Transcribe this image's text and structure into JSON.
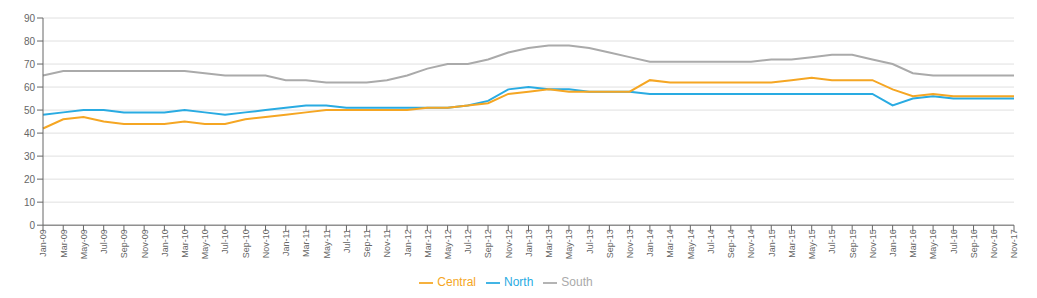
{
  "chart_data": {
    "type": "line",
    "categories": [
      "Jan-09",
      "Mar-09",
      "May-09",
      "Jul-09",
      "Sep-09",
      "Nov-09",
      "Jan-10",
      "Mar-10",
      "May-10",
      "Jul-10",
      "Sep-10",
      "Nov-10",
      "Jan-11",
      "Mar-11",
      "May-11",
      "Jul-11",
      "Sep-11",
      "Nov-11",
      "Jan-12",
      "Mar-12",
      "May-12",
      "Jul-12",
      "Sep-12",
      "Nov-12",
      "Jan-13",
      "Mar-13",
      "May-13",
      "Jul-13",
      "Sep-13",
      "Nov-13",
      "Jan-14",
      "Mar-14",
      "May-14",
      "Jul-14",
      "Sep-14",
      "Nov-14",
      "Jan-15",
      "Mar-15",
      "May-15",
      "Jul-15",
      "Sep-15",
      "Nov-15",
      "Jan-16",
      "Mar-16",
      "May-16",
      "Jul-16",
      "Sep-16",
      "Nov-16",
      "Nov-17"
    ],
    "series": [
      {
        "name": "North",
        "color": "#29ABE2",
        "values": [
          48,
          49,
          50,
          50,
          49,
          49,
          49,
          50,
          49,
          48,
          49,
          50,
          51,
          52,
          52,
          51,
          51,
          51,
          51,
          51,
          51,
          52,
          54,
          59,
          60,
          59,
          59,
          58,
          58,
          58,
          57,
          57,
          57,
          57,
          57,
          57,
          57,
          57,
          57,
          57,
          57,
          57,
          52,
          55,
          56,
          55,
          55,
          55,
          55
        ]
      },
      {
        "name": "Central",
        "color": "#F5A623",
        "values": [
          42,
          46,
          47,
          45,
          44,
          44,
          44,
          45,
          44,
          44,
          46,
          47,
          48,
          49,
          50,
          50,
          50,
          50,
          50,
          51,
          51,
          52,
          53,
          57,
          58,
          59,
          58,
          58,
          58,
          58,
          63,
          62,
          62,
          62,
          62,
          62,
          62,
          63,
          64,
          63,
          63,
          63,
          59,
          56,
          57,
          56,
          56,
          56,
          56
        ]
      },
      {
        "name": "South",
        "color": "#AAAAAA",
        "values": [
          65,
          67,
          67,
          67,
          67,
          67,
          67,
          67,
          66,
          65,
          65,
          65,
          63,
          63,
          62,
          62,
          62,
          63,
          65,
          68,
          70,
          70,
          72,
          75,
          77,
          78,
          78,
          77,
          75,
          73,
          71,
          71,
          71,
          71,
          71,
          71,
          72,
          72,
          73,
          74,
          74,
          72,
          70,
          66,
          65,
          65,
          65,
          65,
          65
        ]
      }
    ],
    "ylim": [
      0,
      90
    ],
    "yticks": [
      0,
      10,
      20,
      30,
      40,
      50,
      60,
      70,
      80,
      90
    ],
    "grid": true,
    "legend": "bottom"
  }
}
